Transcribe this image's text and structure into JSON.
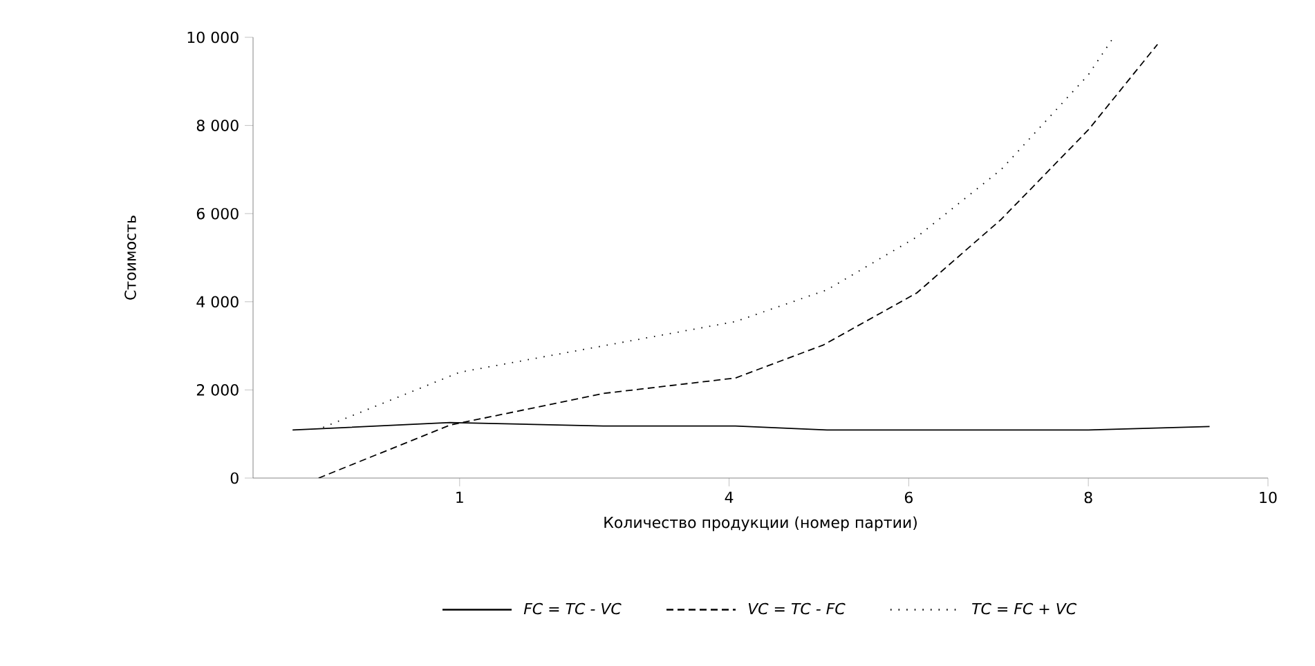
{
  "chart_data": {
    "type": "line",
    "xlabel": "Количество продукции (номер партии)",
    "ylabel": "Стоимость",
    "xlim": [
      -1.3,
      10
    ],
    "xticks": [
      1,
      4,
      6,
      8,
      10
    ],
    "ylim": [
      0,
      10000
    ],
    "yticks": [
      {
        "value": 0,
        "label": "0"
      },
      {
        "value": 2000,
        "label": "2 000"
      },
      {
        "value": 4000,
        "label": "4 000"
      },
      {
        "value": 6000,
        "label": "6 000"
      },
      {
        "value": 8000,
        "label": "8 000"
      },
      {
        "value": 10000,
        "label": "10 000"
      }
    ],
    "legend": "bottom",
    "grid": false,
    "series": [
      {
        "name": "FC = TC - VC",
        "color": "#000000",
        "line_style": "solid",
        "x": [
          -0.86,
          0.89,
          2.6,
          4.07,
          5.09,
          8,
          9.35
        ],
        "values": [
          1090,
          1260,
          1180,
          1180,
          1090,
          1090,
          1170
        ]
      },
      {
        "name": "VC = TC - FC",
        "color": "#000000",
        "line_style": "dashed",
        "x": [
          -0.57,
          0.89,
          2.6,
          4.07,
          5.05,
          6.09,
          7.03,
          8,
          8.77
        ],
        "values": [
          0,
          1200,
          1920,
          2270,
          3020,
          4200,
          5870,
          7900,
          9840
        ]
      },
      {
        "name": "TC = FC + VC",
        "color": "#000000",
        "line_style": "dotted",
        "x": [
          -0.52,
          1,
          2.6,
          4.07,
          5.09,
          6.09,
          7.03,
          8,
          8.28
        ],
        "values": [
          1150,
          2400,
          3000,
          3550,
          4270,
          5470,
          7000,
          9150,
          10000
        ]
      }
    ]
  }
}
